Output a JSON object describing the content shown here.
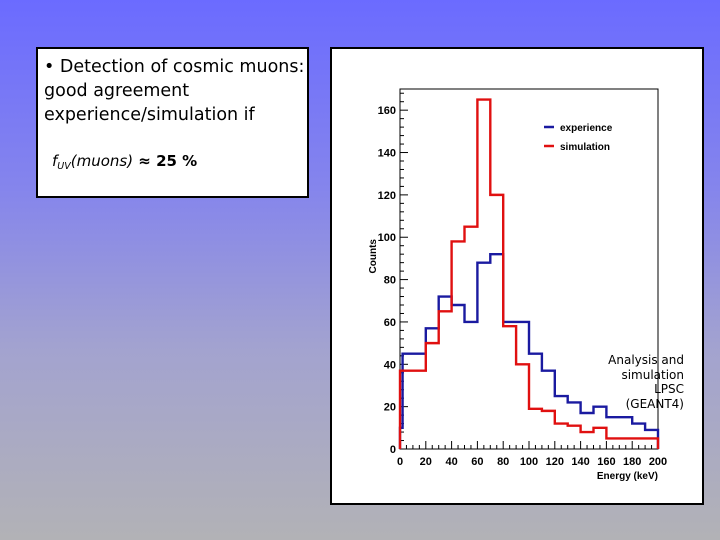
{
  "text_box": {
    "bullet": "• Detection of cosmic muons: good agreement experience/simulation if",
    "formula_f": "f",
    "formula_sub": "UV",
    "formula_muons": "(muons)",
    "formula_rest": " ≈ 25 %"
  },
  "annotation": "Analysis and\nsimulation\nLPSC\n(GEANT4)",
  "colors": {
    "experience": "#1a1aa0",
    "simulation": "#e01010"
  },
  "chart_data": {
    "type": "histogram",
    "title": "",
    "xlabel": "Energy (keV)",
    "ylabel": "Counts",
    "xlim": [
      0,
      200
    ],
    "ylim": [
      0,
      170
    ],
    "xticks": [
      "0",
      "20",
      "40",
      "60",
      "80",
      "100",
      "120",
      "140",
      "160",
      "180",
      "200"
    ],
    "yticks": [
      "0",
      "20",
      "40",
      "60",
      "80",
      "100",
      "120",
      "140",
      "160"
    ],
    "legend_position": "top-right",
    "bin_edges": [
      0,
      2,
      20,
      30,
      40,
      50,
      60,
      70,
      80,
      90,
      100,
      110,
      120,
      130,
      140,
      150,
      160,
      170,
      180,
      190,
      200
    ],
    "series": [
      {
        "name": "experience",
        "values": [
          10,
          45,
          57,
          72,
          68,
          60,
          88,
          92,
          60,
          60,
          45,
          37,
          25,
          22,
          17,
          20,
          15,
          15,
          12,
          9
        ]
      },
      {
        "name": "simulation",
        "values": [
          37,
          37,
          50,
          65,
          98,
          105,
          165,
          120,
          58,
          40,
          19,
          18,
          12,
          11,
          8,
          10,
          5,
          5,
          5,
          5
        ]
      }
    ]
  }
}
